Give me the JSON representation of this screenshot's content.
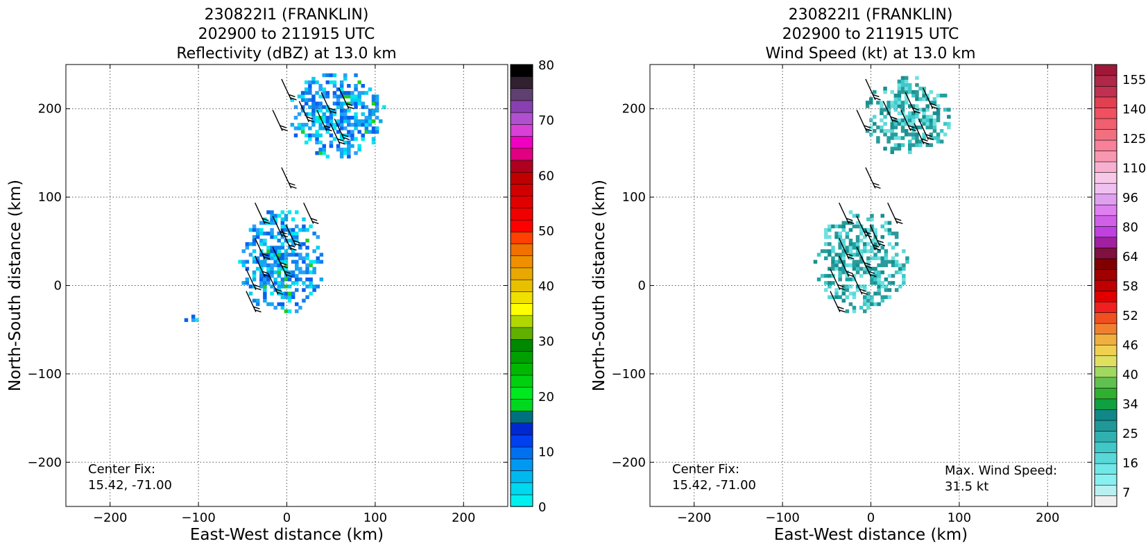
{
  "panels": [
    {
      "title_lines": [
        "230822I1 (FRANKLIN)",
        "202900 to 211915 UTC",
        "Reflectivity (dBZ) at 13.0 km"
      ],
      "xlabel": "East-West distance (km)",
      "ylabel": "North-South distance (km)",
      "center_fix_lines": [
        "Center Fix:",
        "15.42, -71.00"
      ],
      "max_wind_lines": []
    },
    {
      "title_lines": [
        "230822I1 (FRANKLIN)",
        "202900 to 211915 UTC",
        "Wind Speed (kt) at 13.0 km"
      ],
      "xlabel": "East-West distance (km)",
      "ylabel": "North-South distance (km)",
      "center_fix_lines": [
        "Center Fix:",
        "15.42, -71.00"
      ],
      "max_wind_lines": [
        "Max. Wind Speed:",
        "31.5 kt"
      ]
    }
  ],
  "chart_data": [
    {
      "type": "heatmap",
      "title": "230822I1 (FRANKLIN) 202900 to 211915 UTC Reflectivity (dBZ) at 13.0 km",
      "xlabel": "East-West distance (km)",
      "ylabel": "North-South distance (km)",
      "xlim": [
        -250,
        250
      ],
      "ylim": [
        -250,
        250
      ],
      "xticks": [
        -200,
        -100,
        0,
        100,
        200
      ],
      "yticks": [
        -200,
        -100,
        0,
        100,
        200
      ],
      "grid": "dotted",
      "colorbar": {
        "ticks": [
          0,
          10,
          20,
          30,
          40,
          50,
          60,
          70,
          80
        ],
        "colors": [
          "#00f0f0",
          "#00d8f0",
          "#00b8f0",
          "#0098f0",
          "#0070f0",
          "#0040f0",
          "#0028d0",
          "#006f80",
          "#00d820",
          "#00e820",
          "#00d010",
          "#00b800",
          "#00a000",
          "#008800",
          "#60b000",
          "#b0d800",
          "#ffff00",
          "#f0e000",
          "#e8c000",
          "#e8a800",
          "#f09000",
          "#f07000",
          "#ff4000",
          "#ff0000",
          "#f00000",
          "#e00000",
          "#d00000",
          "#c00000",
          "#b00020",
          "#e00080",
          "#f000c0",
          "#d840d8",
          "#b050d0",
          "#8840b0",
          "#604070",
          "#302030",
          "#000000"
        ]
      },
      "echo_regions_km": [
        {
          "label": "north cluster",
          "x": [
            0,
            110
          ],
          "y": [
            140,
            240
          ],
          "dBZ_range": [
            0,
            20
          ]
        },
        {
          "label": "central cluster",
          "x": [
            -55,
            40
          ],
          "y": [
            -35,
            85
          ],
          "dBZ_range": [
            0,
            25
          ]
        },
        {
          "label": "west fleck",
          "x": [
            -120,
            -100
          ],
          "y": [
            -45,
            -35
          ],
          "dBZ_range": [
            5,
            10
          ]
        }
      ]
    },
    {
      "type": "heatmap",
      "title": "230822I1 (FRANKLIN) 202900 to 211915 UTC Wind Speed (kt) at 13.0 km",
      "xlabel": "East-West distance (km)",
      "ylabel": "North-South distance (km)",
      "xlim": [
        -250,
        250
      ],
      "ylim": [
        -250,
        250
      ],
      "xticks": [
        -200,
        -100,
        0,
        100,
        200
      ],
      "yticks": [
        -200,
        -100,
        0,
        100,
        200
      ],
      "grid": "dotted",
      "max_wind_kt": 31.5,
      "colorbar": {
        "ticks": [
          7,
          16,
          25,
          34,
          40,
          46,
          52,
          58,
          64,
          80,
          96,
          110,
          125,
          140,
          155
        ],
        "colors": [
          "#f0f0f0",
          "#b8f0f0",
          "#88f0f0",
          "#70e8e8",
          "#58d8d8",
          "#40c8c8",
          "#30b0b0",
          "#209898",
          "#108888",
          "#10a040",
          "#30b030",
          "#60c050",
          "#a0d860",
          "#e0e060",
          "#f0d050",
          "#f0b040",
          "#f08030",
          "#f05020",
          "#f02020",
          "#e00000",
          "#c00000",
          "#a00000",
          "#800000",
          "#801040",
          "#a020a0",
          "#c040e0",
          "#d060e8",
          "#e080f0",
          "#e0a0f0",
          "#f0c0f0",
          "#f8c8e8",
          "#f8b0d0",
          "#f898b0",
          "#f88098",
          "#f07080",
          "#f06070",
          "#f05060",
          "#e04050",
          "#c03050",
          "#b02848",
          "#a01838"
        ]
      },
      "echo_regions_km": [
        {
          "label": "north cluster",
          "x": [
            -10,
            90
          ],
          "y": [
            145,
            235
          ],
          "kt_range": [
            16,
            31.5
          ]
        },
        {
          "label": "central cluster",
          "x": [
            -65,
            40
          ],
          "y": [
            -35,
            85
          ],
          "kt_range": [
            16,
            31.5
          ]
        }
      ],
      "wind_barbs_km": [
        {
          "x": 5,
          "y": 210
        },
        {
          "x": 25,
          "y": 185
        },
        {
          "x": 50,
          "y": 195
        },
        {
          "x": 70,
          "y": 200
        },
        {
          "x": -5,
          "y": 175
        },
        {
          "x": 45,
          "y": 175
        },
        {
          "x": 65,
          "y": 165
        },
        {
          "x": 60,
          "y": 160
        },
        {
          "x": 5,
          "y": 110
        },
        {
          "x": -25,
          "y": 70
        },
        {
          "x": 30,
          "y": 70
        },
        {
          "x": -5,
          "y": 55
        },
        {
          "x": 10,
          "y": 45
        },
        {
          "x": -25,
          "y": 30
        },
        {
          "x": 5,
          "y": 40
        },
        {
          "x": -5,
          "y": 20
        },
        {
          "x": -25,
          "y": 10
        },
        {
          "x": 0,
          "y": 10
        },
        {
          "x": -35,
          "y": -5
        },
        {
          "x": -10,
          "y": -10
        },
        {
          "x": -35,
          "y": -30
        }
      ]
    }
  ]
}
